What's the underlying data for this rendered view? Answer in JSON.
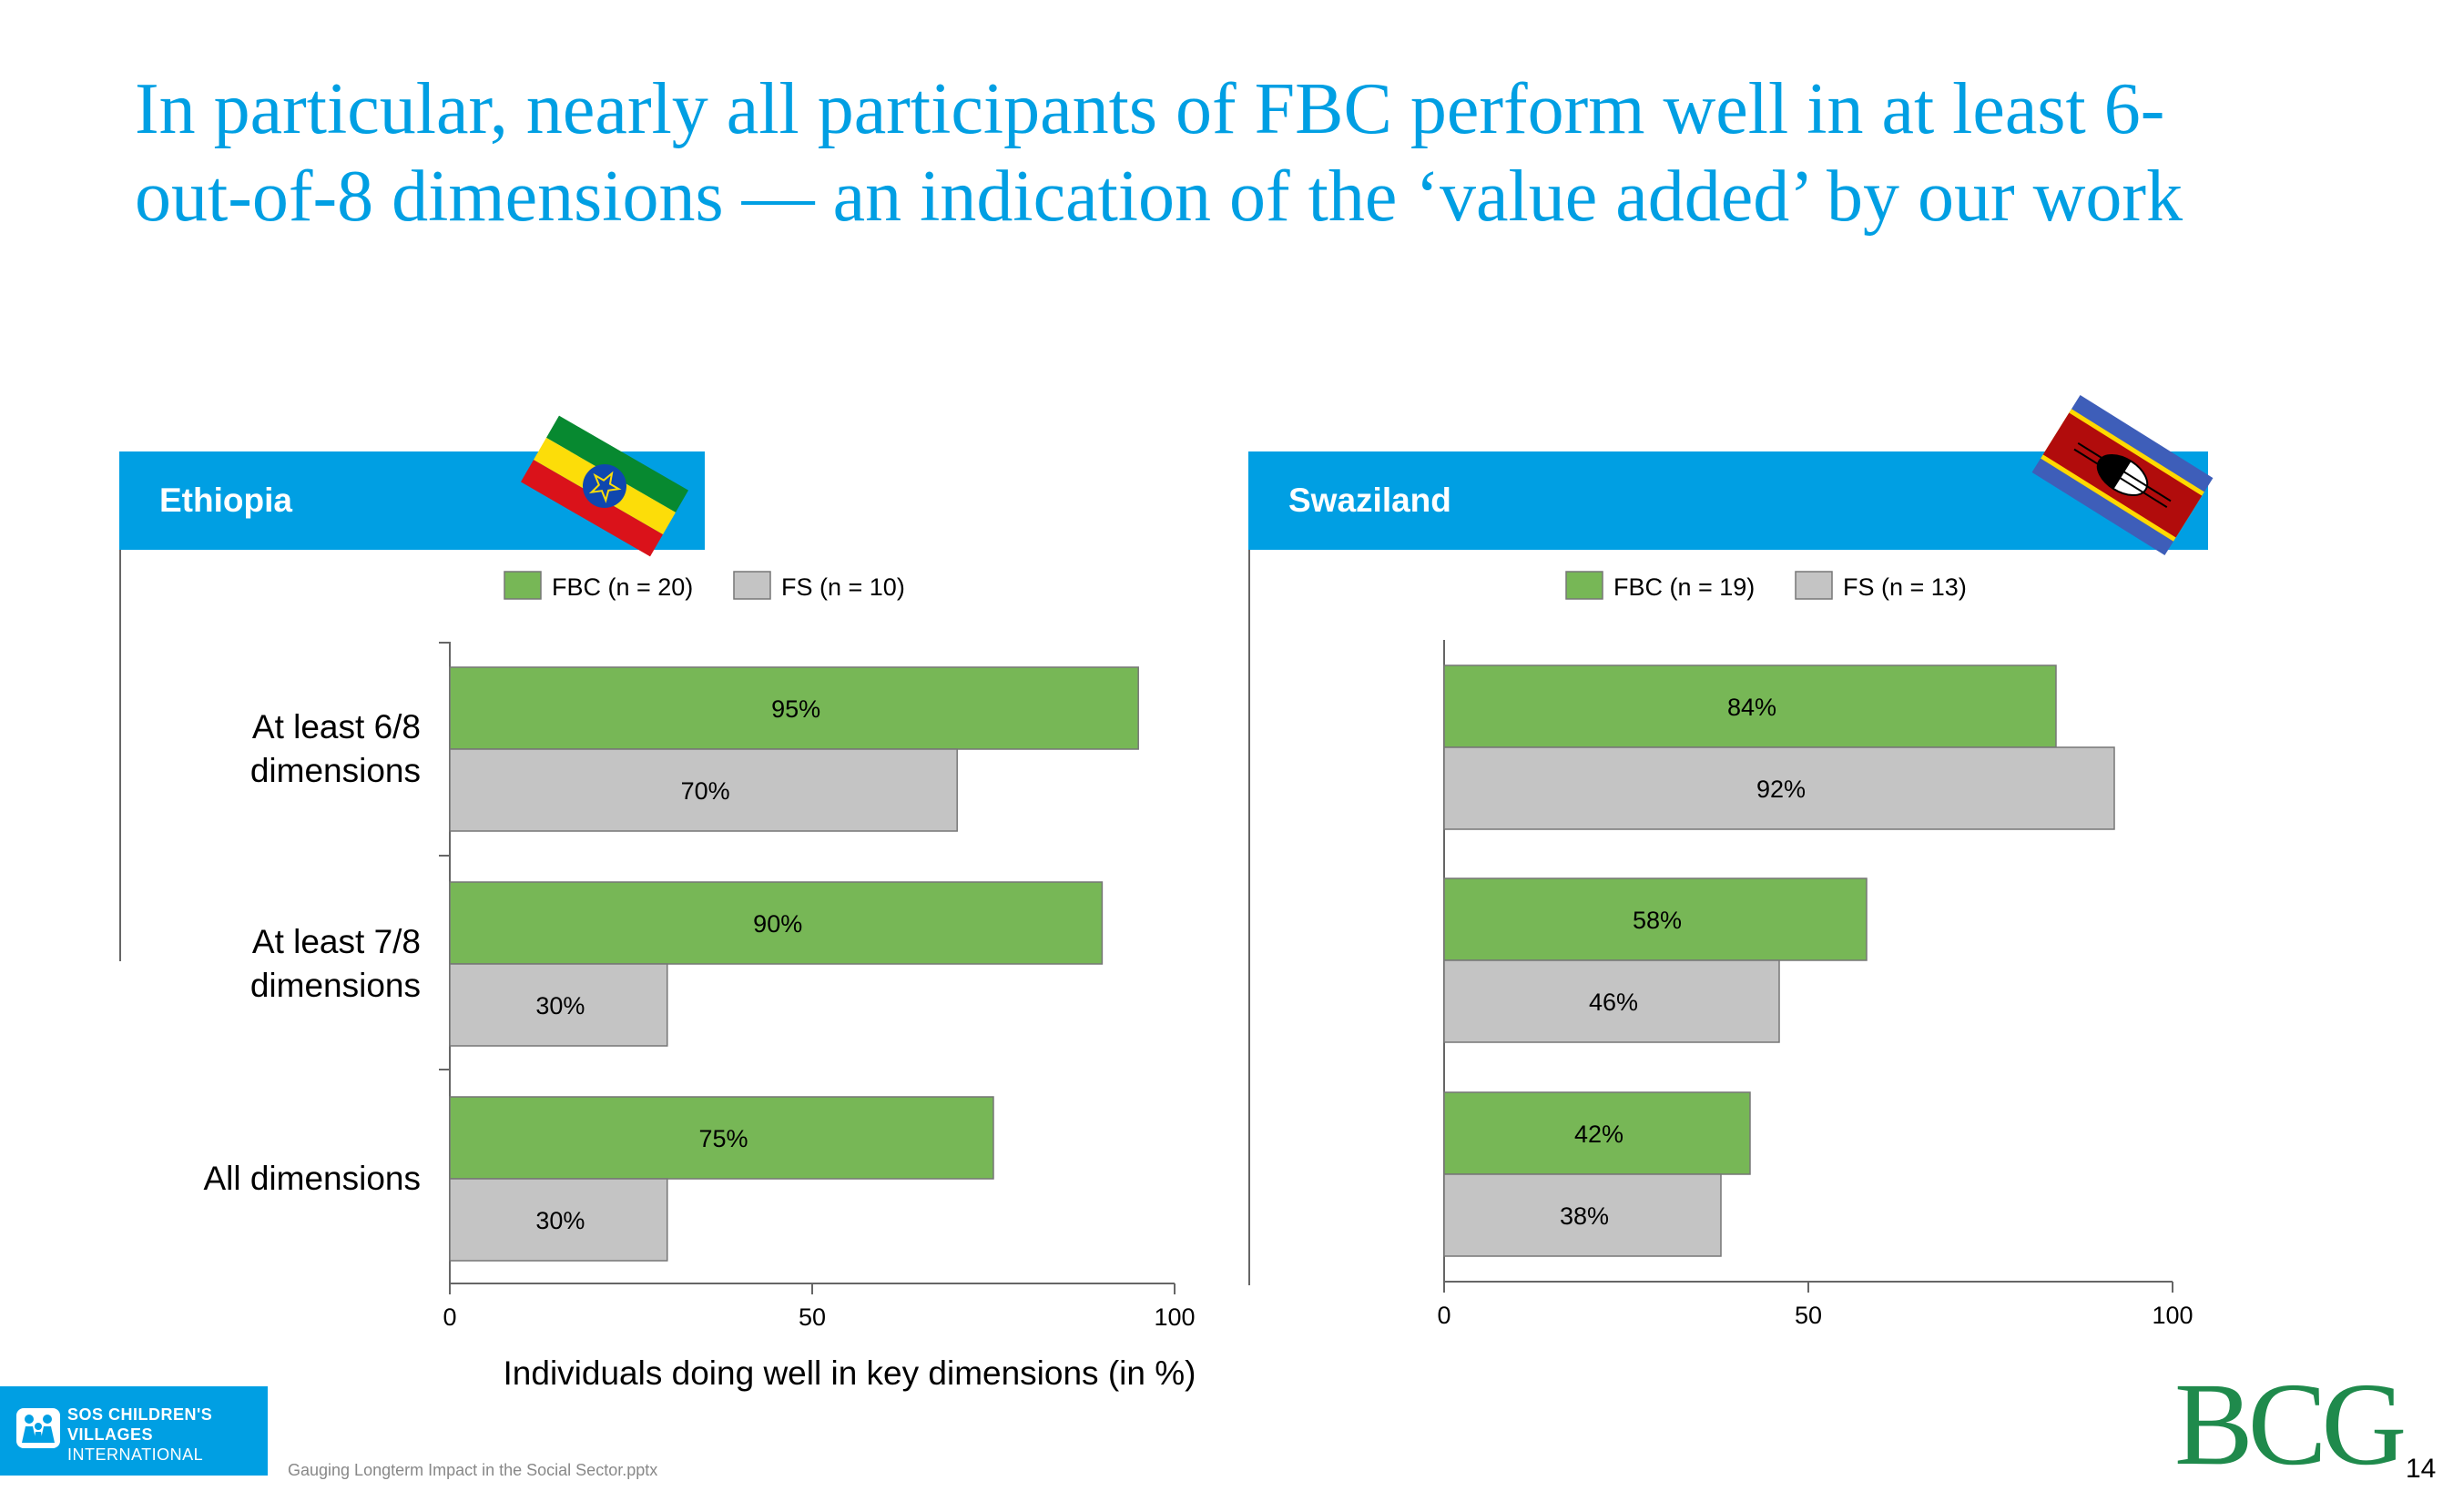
{
  "title_line1": "In particular, nearly all participants of FBC perform well in at least 6-",
  "title_line2": "out-of-8 dimensions — an indication of the ‘value added’ by our work",
  "colors": {
    "accent": "#009fe3",
    "fbc": "#77b756",
    "fs": "#c4c4c4",
    "bcg": "#1f8a4c"
  },
  "icons": [
    "ethiopia-flag-icon",
    "swaziland-flag-icon",
    "sos-childrens-villages-logo",
    "bcg-logo"
  ],
  "chart_data": [
    {
      "type": "bar",
      "orientation": "horizontal",
      "panel_title": "Ethiopia",
      "categories": [
        "At least 6/8 dimensions",
        "At least 7/8 dimensions",
        "All dimensions"
      ],
      "series": [
        {
          "name": "FBC (n = 20)",
          "values": [
            95,
            90,
            75
          ],
          "labels": [
            "95%",
            "90%",
            "75%"
          ]
        },
        {
          "name": "FS (n = 10)",
          "values": [
            70,
            30,
            30
          ],
          "labels": [
            "70%",
            "30%",
            "30%"
          ]
        }
      ],
      "xlim": [
        0,
        100
      ],
      "xticks": [
        "0",
        "50",
        "100"
      ],
      "xlabel": "Individuals doing well in key dimensions (in %)",
      "legend_position": "top"
    },
    {
      "type": "bar",
      "orientation": "horizontal",
      "panel_title": "Swaziland",
      "categories": [
        "At least 6/8 dimensions",
        "At least 7/8 dimensions",
        "All dimensions"
      ],
      "series": [
        {
          "name": "FBC (n = 19)",
          "values": [
            84,
            58,
            42
          ],
          "labels": [
            "84%",
            "58%",
            "42%"
          ]
        },
        {
          "name": "FS (n = 13)",
          "values": [
            92,
            46,
            38
          ],
          "labels": [
            "92%",
            "46%",
            "38%"
          ]
        }
      ],
      "xlim": [
        0,
        100
      ],
      "xticks": [
        "0",
        "50",
        "100"
      ],
      "xlabel": "",
      "legend_position": "top"
    }
  ],
  "category_label_lines": [
    [
      "At least 6/8",
      "dimensions"
    ],
    [
      "At least 7/8",
      "dimensions"
    ],
    [
      "All dimensions"
    ]
  ],
  "logo": {
    "sos_line1": "SOS CHILDREN'S",
    "sos_line2": "VILLAGES",
    "sos_line3": "INTERNATIONAL",
    "bcg": "BCG"
  },
  "footer": {
    "file_name": "Gauging Longterm Impact in the Social Sector.pptx",
    "page_number": "14"
  }
}
